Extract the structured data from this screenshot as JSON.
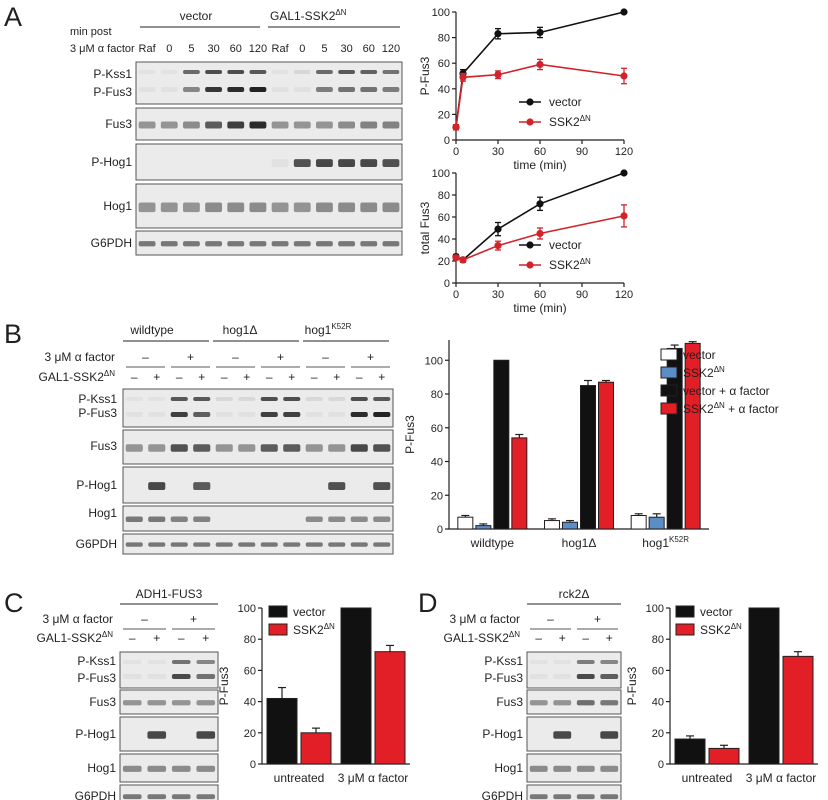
{
  "figure": {
    "panel_letters": [
      "A",
      "B",
      "C",
      "D"
    ],
    "panelA": {
      "row_label": "min post",
      "treatment_label": "3 μM α factor",
      "group_vector": "vector",
      "group_gal_base": "GAL1-SSK2",
      "group_gal_sup": "ΔN",
      "lanes": [
        "Raf",
        "0",
        "5",
        "30",
        "60",
        "120",
        "Raf",
        "0",
        "5",
        "30",
        "60",
        "120"
      ],
      "blots": [
        "P-Kss1",
        "P-Fus3",
        "Fus3",
        "P-Hog1",
        "Hog1",
        "G6PDH"
      ]
    },
    "panelB": {
      "groups": [
        "wildtype",
        "hog1Δ",
        "hog1"
      ],
      "group3_sup": "K52R",
      "row1_label": "3 μM α factor",
      "row2_base": "GAL1-SSK2",
      "row2_sup": "ΔN",
      "alpha_signs": [
        "–",
        "+",
        "–",
        "+",
        "–",
        "+"
      ],
      "gal_signs": [
        "–",
        "+",
        "–",
        "+",
        "–",
        "+",
        "–",
        "+",
        "–",
        "+",
        "–",
        "+"
      ],
      "blots": [
        "P-Kss1",
        "P-Fus3",
        "Fus3",
        "P-Hog1",
        "Hog1",
        "G6PDH"
      ]
    },
    "panelC": {
      "header": "ADH1-FUS3",
      "row1_label": "3 μM α factor",
      "row2_base": "GAL1-SSK2",
      "row2_sup": "ΔN",
      "alpha_signs": [
        "–",
        "+"
      ],
      "gal_signs": [
        "–",
        "+",
        "–",
        "+"
      ],
      "blots": [
        "P-Kss1",
        "P-Fus3",
        "Fus3",
        "P-Hog1",
        "Hog1",
        "G6PDH"
      ]
    },
    "panelD": {
      "header": "rck2Δ",
      "row1_label": "3 μM α factor",
      "row2_base": "GAL1-SSK2",
      "row2_sup": "ΔN",
      "alpha_signs": [
        "–",
        "+"
      ],
      "gal_signs": [
        "–",
        "+",
        "–",
        "+"
      ],
      "blots": [
        "P-Kss1",
        "P-Fus3",
        "Fus3",
        "P-Hog1",
        "Hog1",
        "G6PDH"
      ]
    }
  },
  "chart_data": [
    {
      "type": "line",
      "panel": "A",
      "xlabel": "time (min)",
      "ylabel": "P-Fus3",
      "x": [
        0,
        5,
        30,
        60,
        120
      ],
      "xticks": [
        0,
        30,
        60,
        90,
        120
      ],
      "yticks": [
        0,
        20,
        40,
        60,
        80,
        100
      ],
      "xlim": [
        0,
        120
      ],
      "ylim": [
        0,
        100
      ],
      "legend_position": "bottom-right",
      "series": [
        {
          "name": "vector",
          "color": "#111111",
          "values": [
            10,
            52,
            83,
            84,
            100
          ],
          "errors": [
            2,
            3,
            4,
            4,
            0
          ]
        },
        {
          "name_base": "SSK2",
          "name_sup": "ΔN",
          "color": "#d2232a",
          "values": [
            10,
            49,
            51,
            59,
            50
          ],
          "errors": [
            2,
            3,
            3,
            4,
            6
          ]
        }
      ]
    },
    {
      "type": "line",
      "panel": "A",
      "xlabel": "time (min)",
      "ylabel": "total Fus3",
      "x": [
        0,
        5,
        30,
        60,
        120
      ],
      "xticks": [
        0,
        30,
        60,
        90,
        120
      ],
      "yticks": [
        0,
        20,
        40,
        60,
        80,
        100
      ],
      "xlim": [
        0,
        120
      ],
      "ylim": [
        0,
        100
      ],
      "legend_position": "bottom-right",
      "series": [
        {
          "name": "vector",
          "color": "#111111",
          "values": [
            24,
            21,
            49,
            72,
            100
          ],
          "errors": [
            2,
            2,
            6,
            6,
            0
          ]
        },
        {
          "name_base": "SSK2",
          "name_sup": "ΔN",
          "color": "#d2232a",
          "values": [
            23,
            21,
            34,
            45,
            61
          ],
          "errors": [
            2,
            2,
            4,
            5,
            10
          ]
        }
      ]
    },
    {
      "type": "bar",
      "panel": "B",
      "ylabel": "P-Fus3",
      "categories": [
        "wildtype",
        "hog1Δ",
        "hog1"
      ],
      "category3_sup": "K52R",
      "yticks": [
        0,
        20,
        40,
        60,
        80,
        100
      ],
      "ylim": [
        0,
        112
      ],
      "legend_position": "top-right",
      "series": [
        {
          "name": "vector",
          "color": "#ffffff",
          "values": [
            7,
            5,
            8
          ],
          "errors": [
            1,
            1,
            1
          ]
        },
        {
          "name_base": "SSK2",
          "name_sup": "ΔN",
          "color": "#5b8ec6",
          "values": [
            2,
            4,
            7
          ],
          "errors": [
            1,
            1,
            2
          ]
        },
        {
          "name": "vector + α factor",
          "color": "#111111",
          "values": [
            100,
            85,
            107
          ],
          "errors": [
            0,
            3,
            2
          ]
        },
        {
          "name_base": "SSK2",
          "name_sup": "ΔN",
          "name_tail": " + α factor",
          "color": "#e21f26",
          "values": [
            54,
            87,
            110
          ],
          "errors": [
            2,
            1,
            1
          ]
        }
      ]
    },
    {
      "type": "bar",
      "panel": "C",
      "ylabel": "P-Fus3",
      "categories": [
        "untreated",
        "3 μM α factor"
      ],
      "yticks": [
        0,
        20,
        40,
        60,
        80,
        100
      ],
      "ylim": [
        0,
        100
      ],
      "legend_position": "top-left",
      "series": [
        {
          "name": "vector",
          "color": "#111111",
          "values": [
            42,
            100
          ],
          "errors": [
            7,
            0
          ]
        },
        {
          "name_base": "SSK2",
          "name_sup": "ΔN",
          "color": "#e21f26",
          "values": [
            20,
            72
          ],
          "errors": [
            3,
            4
          ]
        }
      ]
    },
    {
      "type": "bar",
      "panel": "D",
      "ylabel": "P-Fus3",
      "categories": [
        "untreated",
        "3 μM α factor"
      ],
      "yticks": [
        0,
        20,
        40,
        60,
        80,
        100
      ],
      "ylim": [
        0,
        100
      ],
      "legend_position": "top-left",
      "series": [
        {
          "name": "vector",
          "color": "#111111",
          "values": [
            16,
            100
          ],
          "errors": [
            2,
            0
          ]
        },
        {
          "name_base": "SSK2",
          "name_sup": "ΔN",
          "color": "#e21f26",
          "values": [
            10,
            69
          ],
          "errors": [
            2,
            3
          ]
        }
      ]
    }
  ]
}
